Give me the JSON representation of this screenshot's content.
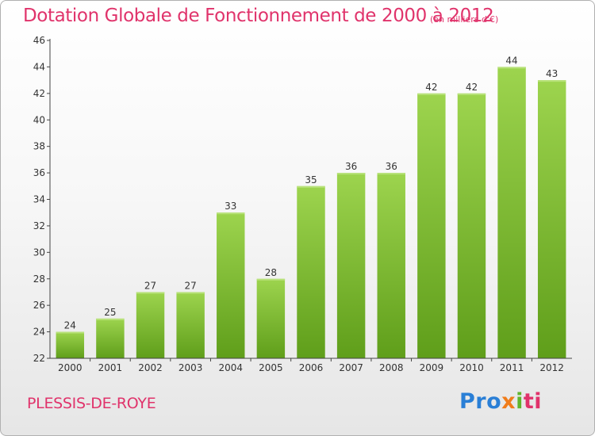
{
  "header": {
    "title": "Dotation Globale de Fonctionnement de 2000 à 2012",
    "unit": "(en milliers d'€)"
  },
  "footer": {
    "location": "PLESSIS-DE-ROYE",
    "logo": [
      "Pro",
      "x",
      "i",
      "ti"
    ]
  },
  "colors": {
    "title": "#e0336b",
    "bar_top": "#9dd44e",
    "bar_bottom": "#5f9e1a"
  },
  "chart_data": {
    "type": "bar",
    "categories": [
      "2000",
      "2001",
      "2002",
      "2003",
      "2004",
      "2005",
      "2006",
      "2007",
      "2008",
      "2009",
      "2010",
      "2011",
      "2012"
    ],
    "values": [
      24,
      25,
      27,
      27,
      33,
      28,
      35,
      36,
      36,
      42,
      42,
      44,
      43
    ],
    "data_labels": [
      "24",
      "25",
      "27",
      "27",
      "33",
      "28",
      "35",
      "36",
      "36",
      "42",
      "42",
      "44",
      "43"
    ],
    "title": "Dotation Globale de Fonctionnement de 2000 à 2012",
    "xlabel": "",
    "ylabel": "",
    "ylim": [
      22,
      46
    ],
    "yticks": [
      22,
      24,
      26,
      28,
      30,
      32,
      34,
      36,
      38,
      40,
      42,
      44,
      46
    ],
    "ytick_labels": [
      "22",
      "24",
      "26",
      "28",
      "30",
      "32",
      "34",
      "36",
      "38",
      "40",
      "42",
      "44",
      "46"
    ],
    "grid": false,
    "legend": "none"
  }
}
